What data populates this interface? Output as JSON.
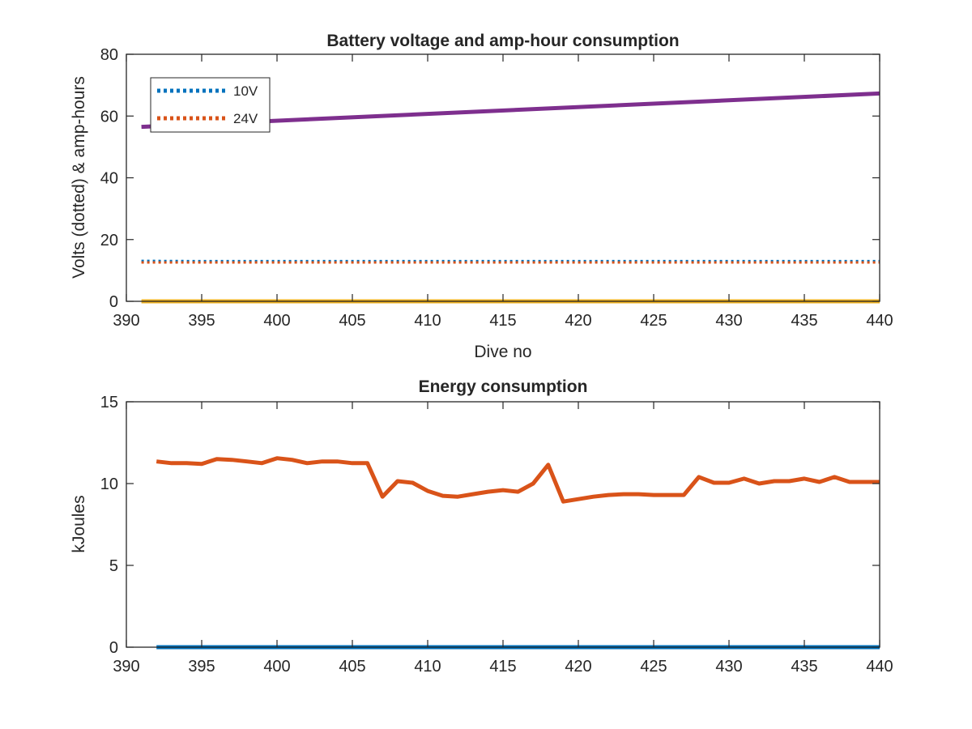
{
  "chart_data": [
    {
      "type": "line",
      "title": "Battery voltage and amp-hour consumption",
      "xlabel": "Dive no",
      "ylabel": "Volts (dotted) & amp-hours",
      "xlim": [
        390,
        440
      ],
      "ylim": [
        0,
        80
      ],
      "xticks": [
        390,
        395,
        400,
        405,
        410,
        415,
        420,
        425,
        430,
        435,
        440
      ],
      "yticks": [
        0,
        20,
        40,
        60,
        80
      ],
      "legend": {
        "position": "top-left",
        "entries": [
          "10V",
          "24V"
        ]
      },
      "series": [
        {
          "name": "10V",
          "style": "dotted",
          "color": "#0072BD",
          "x": [
            391,
            395,
            400,
            405,
            410,
            415,
            420,
            425,
            430,
            435,
            440
          ],
          "y": [
            13.1,
            13.0,
            13.0,
            13.0,
            13.0,
            13.0,
            13.0,
            13.0,
            13.0,
            13.0,
            13.0
          ]
        },
        {
          "name": "24V",
          "style": "dotted",
          "color": "#D95319",
          "x": [
            391,
            395,
            400,
            405,
            410,
            415,
            420,
            425,
            430,
            435,
            440
          ],
          "y": [
            12.6,
            12.6,
            12.6,
            12.6,
            12.6,
            12.6,
            12.6,
            12.6,
            12.6,
            12.6,
            12.6
          ]
        },
        {
          "style": "solid",
          "color": "#7E2F8E",
          "x": [
            391,
            440
          ],
          "y": [
            56.5,
            67.3
          ]
        },
        {
          "style": "solid",
          "color": "#EDB120",
          "x": [
            391,
            440
          ],
          "y": [
            0,
            0
          ]
        }
      ]
    },
    {
      "type": "line",
      "title": "Energy consumption",
      "xlabel": "",
      "ylabel": "kJoules",
      "xlim": [
        390,
        440
      ],
      "ylim": [
        0,
        15
      ],
      "xticks": [
        390,
        395,
        400,
        405,
        410,
        415,
        420,
        425,
        430,
        435,
        440
      ],
      "yticks": [
        0,
        5,
        10,
        15
      ],
      "series": [
        {
          "style": "solid",
          "color": "#D95319",
          "x": [
            392,
            393,
            394,
            395,
            396,
            397,
            398,
            399,
            400,
            401,
            402,
            403,
            404,
            405,
            406,
            407,
            408,
            409,
            410,
            411,
            412,
            413,
            414,
            415,
            416,
            417,
            418,
            419,
            420,
            421,
            422,
            423,
            424,
            425,
            426,
            427,
            428,
            429,
            430,
            431,
            432,
            433,
            434,
            435,
            436,
            437,
            438,
            439,
            440
          ],
          "y": [
            11.35,
            11.25,
            11.25,
            11.2,
            11.5,
            11.45,
            11.35,
            11.25,
            11.55,
            11.45,
            11.25,
            11.35,
            11.35,
            11.25,
            11.25,
            9.2,
            10.15,
            10.05,
            9.55,
            9.25,
            9.2,
            9.35,
            9.5,
            9.6,
            9.5,
            10.0,
            11.15,
            8.9,
            9.05,
            9.2,
            9.3,
            9.35,
            9.35,
            9.3,
            9.3,
            9.3,
            10.4,
            10.05,
            10.05,
            10.3,
            10.0,
            10.15,
            10.15,
            10.3,
            10.1,
            10.4,
            10.1,
            10.1,
            10.1
          ]
        },
        {
          "style": "solid",
          "color": "#0072BD",
          "x": [
            392,
            440
          ],
          "y": [
            0,
            0
          ]
        }
      ]
    }
  ]
}
